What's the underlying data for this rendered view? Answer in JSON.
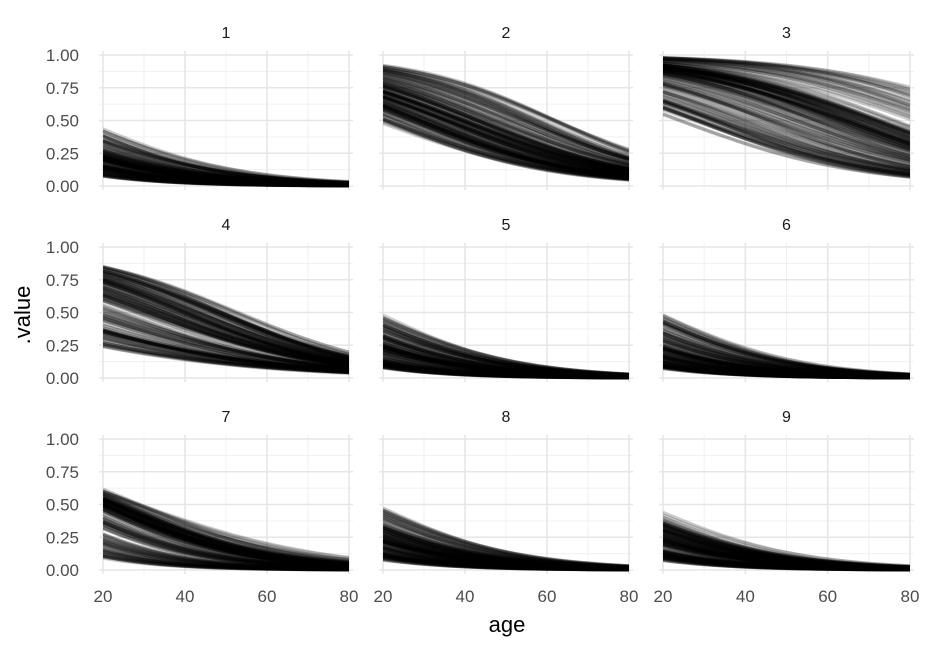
{
  "chart_data": {
    "type": "line",
    "xlabel": "age",
    "ylabel": ".value",
    "x_ticks": [
      "20",
      "40",
      "60",
      "80"
    ],
    "y_ticks": [
      "0.00",
      "0.25",
      "0.50",
      "0.75",
      "1.00"
    ],
    "xlim": [
      20,
      80
    ],
    "ylim": [
      0,
      1
    ],
    "grid": true,
    "line_color": "#000000",
    "line_alpha": 0.2,
    "panels": [
      {
        "label": "1",
        "representative_curves": [
          {
            "x": [
              20,
              40,
              60,
              80
            ],
            "y": [
              0.42,
              0.17,
              0.07,
              0.03
            ]
          },
          {
            "x": [
              20,
              40,
              60,
              80
            ],
            "y": [
              0.2,
              0.08,
              0.03,
              0.01
            ]
          },
          {
            "x": [
              20,
              40,
              60,
              80
            ],
            "y": [
              0.08,
              0.03,
              0.01,
              0.0
            ]
          }
        ]
      },
      {
        "label": "2",
        "representative_curves": [
          {
            "x": [
              20,
              40,
              60,
              80
            ],
            "y": [
              0.91,
              0.78,
              0.52,
              0.27
            ]
          },
          {
            "x": [
              20,
              40,
              60,
              80
            ],
            "y": [
              0.72,
              0.5,
              0.27,
              0.11
            ]
          },
          {
            "x": [
              20,
              40,
              60,
              80
            ],
            "y": [
              0.5,
              0.3,
              0.14,
              0.05
            ]
          }
        ]
      },
      {
        "label": "3",
        "representative_curves": [
          {
            "x": [
              20,
              40,
              60,
              80
            ],
            "y": [
              0.98,
              0.95,
              0.88,
              0.74
            ]
          },
          {
            "x": [
              20,
              40,
              60,
              80
            ],
            "y": [
              0.88,
              0.75,
              0.55,
              0.3
            ]
          },
          {
            "x": [
              20,
              40,
              60,
              80
            ],
            "y": [
              0.55,
              0.35,
              0.18,
              0.07
            ]
          }
        ]
      },
      {
        "label": "4",
        "representative_curves": [
          {
            "x": [
              20,
              40,
              60,
              80
            ],
            "y": [
              0.85,
              0.68,
              0.42,
              0.18
            ]
          },
          {
            "x": [
              20,
              40,
              60,
              80
            ],
            "y": [
              0.65,
              0.44,
              0.24,
              0.1
            ]
          },
          {
            "x": [
              20,
              40,
              60,
              80
            ],
            "y": [
              0.24,
              0.12,
              0.06,
              0.04
            ]
          }
        ]
      },
      {
        "label": "5",
        "representative_curves": [
          {
            "x": [
              20,
              40,
              60,
              80
            ],
            "y": [
              0.46,
              0.2,
              0.08,
              0.03
            ]
          },
          {
            "x": [
              20,
              40,
              60,
              80
            ],
            "y": [
              0.22,
              0.09,
              0.03,
              0.01
            ]
          },
          {
            "x": [
              20,
              40,
              60,
              80
            ],
            "y": [
              0.08,
              0.03,
              0.01,
              0.0
            ]
          }
        ]
      },
      {
        "label": "6",
        "representative_curves": [
          {
            "x": [
              20,
              40,
              60,
              80
            ],
            "y": [
              0.47,
              0.2,
              0.08,
              0.03
            ]
          },
          {
            "x": [
              20,
              40,
              60,
              80
            ],
            "y": [
              0.22,
              0.09,
              0.03,
              0.01
            ]
          },
          {
            "x": [
              20,
              40,
              60,
              80
            ],
            "y": [
              0.08,
              0.03,
              0.01,
              0.0
            ]
          }
        ]
      },
      {
        "label": "7",
        "representative_curves": [
          {
            "x": [
              20,
              40,
              60,
              80
            ],
            "y": [
              0.6,
              0.4,
              0.2,
              0.08
            ]
          },
          {
            "x": [
              20,
              40,
              60,
              80
            ],
            "y": [
              0.5,
              0.23,
              0.09,
              0.03
            ]
          },
          {
            "x": [
              20,
              40,
              60,
              80
            ],
            "y": [
              0.1,
              0.04,
              0.01,
              0.0
            ]
          }
        ]
      },
      {
        "label": "8",
        "representative_curves": [
          {
            "x": [
              20,
              40,
              60,
              80
            ],
            "y": [
              0.46,
              0.2,
              0.08,
              0.03
            ]
          },
          {
            "x": [
              20,
              40,
              60,
              80
            ],
            "y": [
              0.22,
              0.09,
              0.03,
              0.01
            ]
          },
          {
            "x": [
              20,
              40,
              60,
              80
            ],
            "y": [
              0.08,
              0.03,
              0.01,
              0.0
            ]
          }
        ]
      },
      {
        "label": "9",
        "representative_curves": [
          {
            "x": [
              20,
              40,
              60,
              80
            ],
            "y": [
              0.44,
              0.19,
              0.08,
              0.03
            ]
          },
          {
            "x": [
              20,
              40,
              60,
              80
            ],
            "y": [
              0.22,
              0.09,
              0.03,
              0.01
            ]
          },
          {
            "x": [
              20,
              40,
              60,
              80
            ],
            "y": [
              0.08,
              0.03,
              0.01,
              0.0
            ]
          }
        ]
      }
    ]
  }
}
